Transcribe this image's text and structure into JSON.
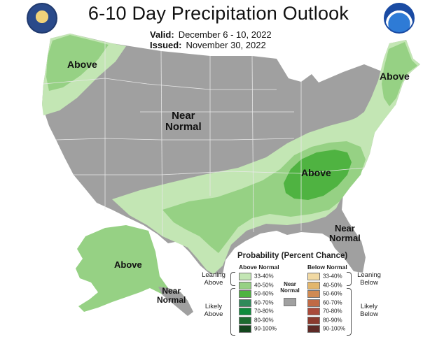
{
  "header": {
    "title": "6-10 Day Precipitation Outlook",
    "valid_label": "Valid:",
    "valid_value": "December 6 - 10, 2022",
    "issued_label": "Issued:",
    "issued_value": "November 30, 2022"
  },
  "logos": {
    "left": "doc-seal-icon",
    "right": "noaa-logo-icon"
  },
  "map_labels": {
    "northwest": "Above",
    "northeast": "Above",
    "southeast_core": "Above",
    "alaska": "Above",
    "central": [
      "Near",
      "Normal"
    ],
    "southeast": [
      "Near",
      "Normal"
    ],
    "southeast_alaska": [
      "Near",
      "Normal"
    ]
  },
  "legend": {
    "title": "Probability (Percent Chance)",
    "above_header": "Above Normal",
    "below_header": "Below Normal",
    "near_label": [
      "Near",
      "Normal"
    ],
    "leaning_above": [
      "Leaning",
      "Above"
    ],
    "likely_above": [
      "Likely",
      "Above"
    ],
    "leaning_below": [
      "Leaning",
      "Below"
    ],
    "likely_below": [
      "Likely",
      "Below"
    ],
    "above": [
      {
        "label": "33-40%",
        "color": "#c3e6b4"
      },
      {
        "label": "40-50%",
        "color": "#96d184"
      },
      {
        "label": "50-60%",
        "color": "#4fb341"
      },
      {
        "label": "60-70%",
        "color": "#2f8a5a"
      },
      {
        "label": "70-80%",
        "color": "#0f8b3c"
      },
      {
        "label": "80-90%",
        "color": "#1c6b2f"
      },
      {
        "label": "90-100%",
        "color": "#13461d"
      }
    ],
    "below": [
      {
        "label": "33-40%",
        "color": "#f1d9a3"
      },
      {
        "label": "40-50%",
        "color": "#e2b66c"
      },
      {
        "label": "50-60%",
        "color": "#cf8a52"
      },
      {
        "label": "60-70%",
        "color": "#c06a45"
      },
      {
        "label": "70-80%",
        "color": "#a94a3a"
      },
      {
        "label": "80-90%",
        "color": "#8a3a2e"
      },
      {
        "label": "90-100%",
        "color": "#5e2a26"
      }
    ],
    "near_color": "#a0a0a0"
  },
  "colors": {
    "near_normal": "#a0a0a0",
    "above_33_40": "#c3e6b4",
    "above_40_50": "#96d184",
    "above_50_60": "#4fb341",
    "border": "#e8e8e8"
  }
}
